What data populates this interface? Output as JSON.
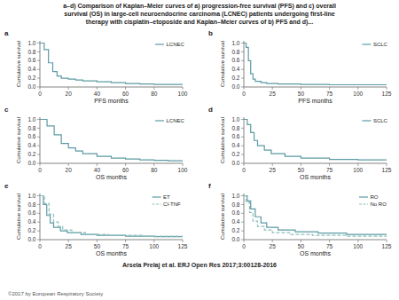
{
  "title": "a–d) Comparison of Kaplan–Meier curves of a) progression-free survival (PFS) and c) overall\nsurvival (OS) in large-cell neuroendocrine carcinoma (LCNEC) patients undergoing first-line\ntherapy with cisplatin–etoposide and Kaplan–Meier curves of b) PFS and d)...",
  "annotations": [
    "Arsela Prelaj et al. ERJ Open Res 2017;3:00128-2016",
    "©2017 by European Respiratory Society"
  ],
  "chart_data": [
    {
      "type": "step",
      "title": "a",
      "xlabel": "PFS months",
      "ylabel": "Cumulative survival",
      "xlim": [
        0,
        100
      ],
      "ylim": [
        0,
        1.05
      ],
      "xticks": [
        0,
        20,
        40,
        60,
        80,
        100
      ],
      "yticks": [
        {
          "value": 0,
          "label": "0.0"
        },
        0.2,
        0.4,
        0.6,
        0.8,
        {
          "value": 1,
          "label": "1.0"
        }
      ],
      "grid": false,
      "legend": "upper right",
      "series": [
        {
          "name": "LCNEC",
          "color": "#5c9ba4",
          "line_style": "solid",
          "x": [
            0,
            3,
            6,
            9,
            12,
            15,
            20,
            25,
            30,
            40,
            50,
            60,
            70,
            80,
            90,
            100
          ],
          "values": [
            1.0,
            0.85,
            0.55,
            0.35,
            0.25,
            0.2,
            0.18,
            0.16,
            0.14,
            0.12,
            0.1,
            0.08,
            0.07,
            0.06,
            0.06,
            0.06
          ]
        }
      ]
    },
    {
      "type": "step",
      "title": "b",
      "xlabel": "PFS months",
      "ylabel": "Cumulative survival",
      "xlim": [
        0,
        125
      ],
      "ylim": [
        0,
        1.05
      ],
      "xticks": [
        0,
        25,
        50,
        75,
        100,
        125
      ],
      "yticks": [
        {
          "value": 0,
          "label": "0.0"
        },
        0.2,
        0.4,
        0.6,
        0.8,
        {
          "value": 1,
          "label": "1.0"
        }
      ],
      "grid": false,
      "legend": "upper right",
      "series": [
        {
          "name": "SCLC",
          "color": "#5c9ba4",
          "line_style": "solid",
          "x": [
            0,
            2,
            4,
            6,
            8,
            10,
            15,
            20,
            30,
            50,
            75,
            100,
            125
          ],
          "values": [
            1.0,
            0.9,
            0.6,
            0.3,
            0.18,
            0.13,
            0.1,
            0.08,
            0.07,
            0.06,
            0.05,
            0.05,
            0.05
          ]
        }
      ]
    },
    {
      "type": "step",
      "title": "c",
      "xlabel": "OS months",
      "ylabel": "Cumulative survival",
      "xlim": [
        0,
        100
      ],
      "ylim": [
        0,
        1.05
      ],
      "xticks": [
        0,
        20,
        40,
        60,
        80,
        100
      ],
      "yticks": [
        {
          "value": 0,
          "label": "0.0"
        },
        0.2,
        0.4,
        0.6,
        0.8,
        {
          "value": 1,
          "label": "1.0"
        }
      ],
      "grid": false,
      "legend": "upper right",
      "series": [
        {
          "name": "LCNEC",
          "color": "#5c9ba4",
          "line_style": "solid",
          "x": [
            0,
            5,
            10,
            15,
            20,
            25,
            30,
            40,
            50,
            60,
            70,
            80,
            90,
            100
          ],
          "values": [
            1.0,
            0.85,
            0.65,
            0.45,
            0.35,
            0.28,
            0.22,
            0.16,
            0.12,
            0.1,
            0.08,
            0.07,
            0.06,
            0.06
          ]
        }
      ]
    },
    {
      "type": "step",
      "title": "d",
      "xlabel": "OS months",
      "ylabel": "Cumulative survival",
      "xlim": [
        0,
        125
      ],
      "ylim": [
        0,
        1.05
      ],
      "xticks": [
        0,
        25,
        50,
        75,
        100,
        125
      ],
      "yticks": [
        {
          "value": 0,
          "label": "0.0"
        },
        0.2,
        0.4,
        0.6,
        0.8,
        {
          "value": 1,
          "label": "1.0"
        }
      ],
      "grid": false,
      "legend": "upper right",
      "series": [
        {
          "name": "SCLC",
          "color": "#5c9ba4",
          "line_style": "solid",
          "x": [
            0,
            3,
            6,
            9,
            12,
            18,
            24,
            36,
            50,
            75,
            100,
            125
          ],
          "values": [
            1.0,
            0.88,
            0.7,
            0.52,
            0.4,
            0.3,
            0.22,
            0.16,
            0.12,
            0.09,
            0.08,
            0.08
          ]
        }
      ]
    },
    {
      "type": "step",
      "title": "e",
      "xlabel": "OS months",
      "ylabel": "Cumulative survival",
      "xlim": [
        0,
        125
      ],
      "ylim": [
        0,
        1.05
      ],
      "xticks": [
        0,
        25,
        50,
        75,
        100,
        125
      ],
      "yticks": [
        {
          "value": 0,
          "label": "0.0"
        },
        0.2,
        0.4,
        0.6,
        0.8,
        {
          "value": 1,
          "label": "1.0"
        }
      ],
      "grid": false,
      "legend": "upper right",
      "series": [
        {
          "name": "ET",
          "color": "#5c9ba4",
          "line_style": "solid",
          "x": [
            0,
            3,
            6,
            9,
            12,
            18,
            24,
            36,
            50,
            75,
            100,
            125
          ],
          "values": [
            1.0,
            0.8,
            0.55,
            0.38,
            0.28,
            0.2,
            0.16,
            0.12,
            0.1,
            0.08,
            0.07,
            0.07
          ]
        },
        {
          "name": "CI-TNF",
          "color": "#8fbfbb",
          "line_style": "dashed",
          "x": [
            0,
            4,
            8,
            12,
            16,
            20,
            28,
            40,
            60,
            90,
            125
          ],
          "values": [
            1.0,
            0.82,
            0.58,
            0.4,
            0.3,
            0.22,
            0.16,
            0.12,
            0.1,
            0.08,
            0.08
          ]
        }
      ]
    },
    {
      "type": "step",
      "title": "f",
      "xlabel": "OS months",
      "ylabel": "Cumulative survival",
      "xlim": [
        0,
        125
      ],
      "ylim": [
        0,
        1.05
      ],
      "xticks": [
        0,
        25,
        50,
        75,
        100,
        125
      ],
      "yticks": [
        {
          "value": 0,
          "label": "0.0"
        },
        0.2,
        0.4,
        0.6,
        0.8,
        {
          "value": 1,
          "label": "1.0"
        }
      ],
      "grid": false,
      "legend": "upper right",
      "series": [
        {
          "name": "RO",
          "color": "#5c9ba4",
          "line_style": "solid",
          "x": [
            0,
            3,
            6,
            10,
            15,
            20,
            30,
            45,
            65,
            90,
            125
          ],
          "values": [
            1.0,
            0.88,
            0.7,
            0.52,
            0.38,
            0.28,
            0.22,
            0.18,
            0.15,
            0.12,
            0.12
          ]
        },
        {
          "name": "No RO",
          "color": "#8fbfbb",
          "line_style": "dashed",
          "x": [
            0,
            2,
            5,
            8,
            12,
            18,
            25,
            40,
            60,
            90,
            125
          ],
          "values": [
            1.0,
            0.85,
            0.62,
            0.42,
            0.3,
            0.22,
            0.16,
            0.12,
            0.1,
            0.08,
            0.08
          ]
        }
      ]
    }
  ]
}
